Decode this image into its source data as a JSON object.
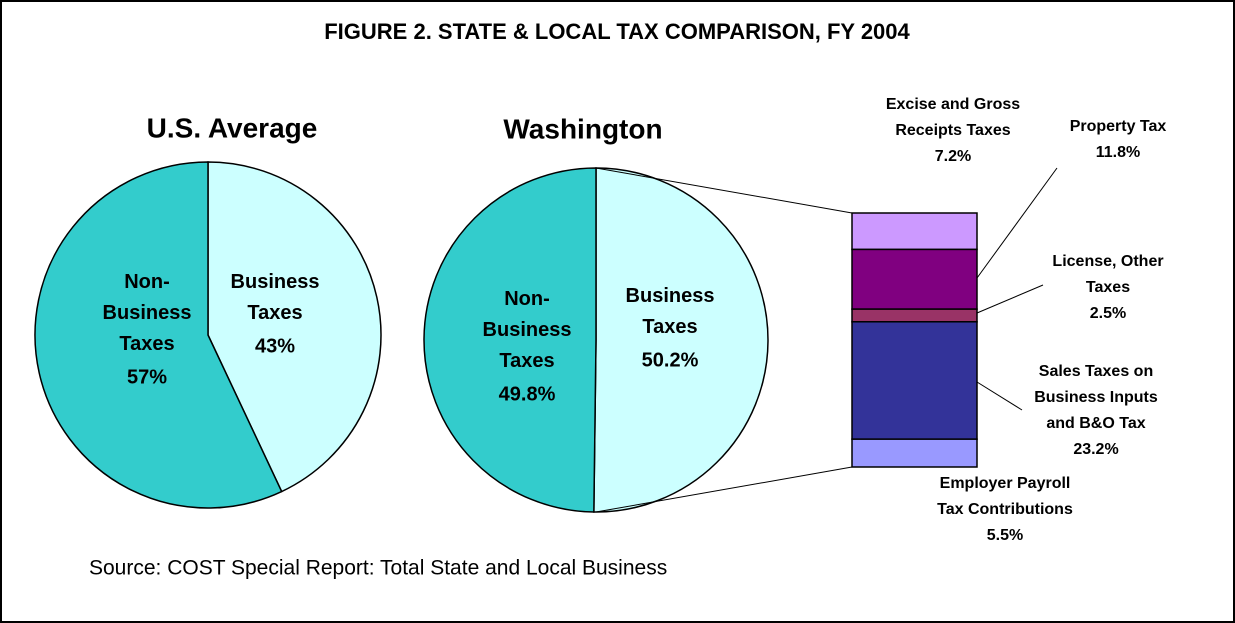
{
  "title": "FIGURE 2. STATE & LOCAL TAX COMPARISON, FY 2004",
  "source": "Source: COST Special Report: Total State and Local Business",
  "chart_data": [
    {
      "type": "pie",
      "title": "U.S. Average",
      "categories": [
        "Business Taxes",
        "Non-Business Taxes"
      ],
      "values": [
        43,
        57
      ],
      "value_labels": [
        "43%",
        "57%"
      ],
      "colors": [
        "#ccffff",
        "#33cccc"
      ]
    },
    {
      "type": "pie",
      "title": "Washington",
      "categories": [
        "Business Taxes",
        "Non-Business Taxes"
      ],
      "values": [
        50.2,
        49.8
      ],
      "value_labels": [
        "50.2%",
        "49.8%"
      ],
      "colors": [
        "#ccffff",
        "#33cccc"
      ]
    },
    {
      "type": "stacked_bar",
      "categories": [
        "Excise and Gross\nReceipts Taxes",
        "Property Tax",
        "License, Other\nTaxes",
        "Sales Taxes on\nBusiness Inputs\nand B&O Tax",
        "Employer Payroll\nTax Contributions"
      ],
      "values": [
        7.2,
        11.8,
        2.5,
        23.2,
        5.5
      ],
      "value_labels": [
        "7.2%",
        "11.8%",
        "2.5%",
        "23.2%",
        "5.5%"
      ],
      "colors": [
        "#cc99ff",
        "#800080",
        "#993366",
        "#333399",
        "#9999ff"
      ]
    }
  ]
}
